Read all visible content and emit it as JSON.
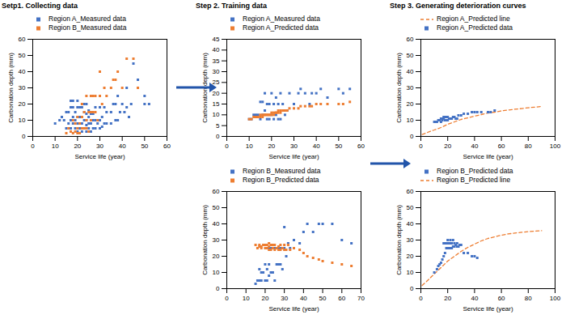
{
  "chart_data": [
    {
      "type": "scatter",
      "title": "Setp1. Collecting data",
      "xlabel": "Service life (year)",
      "ylabel": "Carbonation depth (mm)",
      "xlim": [
        0,
        60
      ],
      "xticks": [
        0,
        10,
        20,
        30,
        40,
        50,
        60
      ],
      "ylim": [
        0,
        60
      ],
      "yticks": [
        0,
        10,
        20,
        30,
        40,
        50,
        60
      ],
      "legend": "upper left",
      "series": [
        {
          "name": "Region A_Measured data",
          "color": "#4472C4",
          "marker": "square",
          "type": "scatter",
          "x": [
            10,
            12,
            13,
            14,
            15,
            15,
            16,
            16,
            17,
            17,
            17,
            17,
            18,
            18,
            18,
            18,
            19,
            19,
            19,
            20,
            20,
            20,
            20,
            20,
            21,
            21,
            21,
            21,
            22,
            22,
            22,
            22,
            23,
            23,
            23,
            23,
            24,
            24,
            24,
            24,
            24,
            25,
            25,
            25,
            25,
            26,
            26,
            26,
            27,
            27,
            27,
            28,
            28,
            28,
            29,
            30,
            30,
            30,
            31,
            31,
            32,
            32,
            33,
            33,
            35,
            35,
            36,
            37,
            37,
            38,
            38,
            39,
            40,
            41,
            42,
            42,
            43,
            44,
            45,
            47,
            50,
            50,
            52
          ],
          "values": [
            8,
            10,
            12,
            10,
            5,
            15,
            8,
            15,
            5,
            10,
            18,
            22,
            8,
            12,
            18,
            22,
            5,
            10,
            15,
            3,
            8,
            12,
            18,
            22,
            5,
            8,
            12,
            18,
            3,
            8,
            12,
            18,
            5,
            10,
            15,
            20,
            3,
            7,
            10,
            14,
            20,
            5,
            8,
            12,
            16,
            3,
            8,
            14,
            5,
            10,
            14,
            5,
            10,
            18,
            8,
            5,
            10,
            18,
            6,
            12,
            8,
            18,
            8,
            15,
            8,
            15,
            20,
            10,
            20,
            10,
            25,
            15,
            20,
            15,
            18,
            30,
            12,
            20,
            45,
            35,
            25,
            20,
            20
          ]
        },
        {
          "name": "Region B_Measured data",
          "color": "#ED7D31",
          "marker": "square",
          "type": "scatter",
          "x": [
            15,
            16,
            17,
            18,
            18,
            19,
            19,
            20,
            20,
            20,
            21,
            21,
            22,
            22,
            22,
            23,
            23,
            24,
            24,
            24,
            25,
            25,
            26,
            26,
            26,
            27,
            27,
            28,
            28,
            29,
            30,
            30,
            31,
            32,
            33,
            35,
            36,
            37,
            38,
            40,
            42,
            45,
            47
          ],
          "values": [
            2,
            5,
            3,
            2,
            10,
            3,
            8,
            2,
            5,
            12,
            2,
            8,
            5,
            12,
            20,
            5,
            15,
            5,
            10,
            25,
            3,
            15,
            10,
            25,
            15,
            15,
            25,
            15,
            25,
            10,
            25,
            40,
            20,
            30,
            25,
            30,
            35,
            35,
            40,
            30,
            48,
            48,
            30
          ]
        }
      ]
    },
    {
      "type": "scatter",
      "title": "Step 2. Training data",
      "xlabel": "Service life (year)",
      "ylabel": "Carbonation depth (mm)",
      "xlim": [
        0,
        60
      ],
      "xticks": [
        0,
        10,
        20,
        30,
        40,
        50,
        60
      ],
      "ylim": [
        0,
        45
      ],
      "yticks": [
        0,
        5,
        10,
        15,
        20,
        25,
        30,
        35,
        40,
        45
      ],
      "legend": "upper left",
      "series": [
        {
          "name": "Region A_Measured data",
          "color": "#4472C4",
          "marker": "square",
          "type": "scatter",
          "x": [
            10,
            11,
            12,
            13,
            14,
            15,
            15,
            16,
            16,
            17,
            17,
            18,
            18,
            19,
            19,
            20,
            20,
            21,
            21,
            22,
            22,
            23,
            23,
            24,
            24,
            25,
            26,
            27,
            28,
            30,
            32,
            33,
            35,
            37,
            38,
            40,
            42,
            45,
            50,
            52,
            55
          ],
          "values": [
            8,
            8,
            10,
            10,
            10,
            8,
            16,
            10,
            16,
            12,
            20,
            8,
            15,
            8,
            15,
            10,
            20,
            8,
            15,
            10,
            18,
            8,
            15,
            8,
            20,
            15,
            10,
            12,
            20,
            15,
            20,
            22,
            20,
            15,
            20,
            20,
            22,
            18,
            22,
            20,
            22
          ]
        },
        {
          "name": "Region A_Predicted data",
          "color": "#ED7D31",
          "marker": "square",
          "type": "scatter",
          "x": [
            10,
            11,
            12,
            13,
            14,
            15,
            15,
            16,
            16,
            17,
            17,
            18,
            18,
            19,
            19,
            20,
            20,
            21,
            21,
            22,
            22,
            23,
            23,
            24,
            24,
            25,
            26,
            27,
            28,
            30,
            32,
            33,
            35,
            37,
            38,
            40,
            42,
            45,
            50,
            52,
            55
          ],
          "values": [
            8,
            8,
            9,
            9,
            9,
            9,
            10,
            9,
            10,
            10,
            10,
            10,
            10,
            10,
            10,
            10,
            11,
            10,
            11,
            11,
            11,
            11,
            12,
            11,
            12,
            12,
            12,
            12,
            13,
            13,
            13,
            14,
            14,
            14,
            14,
            15,
            15,
            15,
            15,
            15,
            16
          ]
        }
      ]
    },
    {
      "type": "scatter",
      "xlabel": "Service life (year)",
      "ylabel": "Carbonation depth (mm)",
      "xlim": [
        0,
        70
      ],
      "xticks": [
        0,
        10,
        20,
        30,
        40,
        50,
        60,
        70
      ],
      "ylim": [
        0,
        60
      ],
      "yticks": [
        0,
        10,
        20,
        30,
        40,
        50,
        60
      ],
      "legend": "upper left",
      "series": [
        {
          "name": "Region B_Measured data",
          "color": "#4472C4",
          "marker": "square",
          "type": "scatter",
          "x": [
            15,
            16,
            17,
            17,
            18,
            18,
            19,
            20,
            20,
            21,
            21,
            22,
            22,
            22,
            23,
            23,
            24,
            24,
            25,
            25,
            26,
            27,
            27,
            28,
            28,
            29,
            30,
            30,
            31,
            32,
            33,
            35,
            38,
            40,
            42,
            45,
            48,
            50,
            55,
            60,
            65
          ],
          "values": [
            3,
            5,
            5,
            12,
            5,
            10,
            10,
            5,
            15,
            5,
            12,
            8,
            15,
            25,
            10,
            25,
            10,
            25,
            5,
            25,
            15,
            15,
            25,
            15,
            25,
            12,
            25,
            38,
            20,
            28,
            25,
            30,
            28,
            35,
            40,
            35,
            40,
            40,
            40,
            30,
            28
          ]
        },
        {
          "name": "Region B_Predicted data",
          "color": "#ED7D31",
          "marker": "square",
          "type": "scatter",
          "x": [
            15,
            16,
            17,
            17,
            18,
            18,
            19,
            20,
            20,
            21,
            21,
            22,
            22,
            22,
            23,
            23,
            24,
            24,
            25,
            25,
            26,
            27,
            27,
            28,
            28,
            29,
            30,
            30,
            31,
            32,
            33,
            35,
            38,
            40,
            42,
            45,
            48,
            50,
            55,
            60,
            65
          ],
          "values": [
            27,
            25,
            26,
            27,
            25,
            26,
            27,
            25,
            27,
            25,
            27,
            24,
            26,
            28,
            24,
            27,
            25,
            27,
            24,
            27,
            25,
            24,
            26,
            24,
            27,
            25,
            24,
            27,
            24,
            27,
            24,
            25,
            24,
            22,
            20,
            19,
            18,
            17,
            16,
            15,
            14
          ]
        }
      ]
    },
    {
      "type": "scatter",
      "title": "Step 3. Generating deterioration curves",
      "xlabel": "Service life (year)",
      "ylabel": "Carbonation depth (mm)",
      "xlim": [
        0,
        100
      ],
      "xticks": [
        0,
        20,
        40,
        60,
        80,
        100
      ],
      "ylim": [
        0,
        60
      ],
      "yticks": [
        0,
        10,
        20,
        30,
        40,
        50,
        60
      ],
      "legend": "upper left",
      "series": [
        {
          "name": "Region A_Predicted line",
          "color": "#ED7D31",
          "type": "line",
          "line_style": "dashed",
          "x": [
            1,
            3,
            5,
            8,
            10,
            15,
            20,
            25,
            30,
            35,
            40,
            45,
            50,
            55,
            60,
            65,
            70,
            75,
            80,
            85,
            90
          ],
          "values": [
            1.2,
            1.8,
            2.5,
            3.5,
            4.0,
            5.5,
            7.5,
            9.0,
            10.5,
            11.5,
            12.5,
            13.5,
            14.5,
            15.0,
            15.8,
            16.3,
            16.8,
            17.2,
            17.7,
            18.1,
            18.5
          ]
        },
        {
          "name": "Region A_Predicted data",
          "color": "#4472C4",
          "marker": "square",
          "type": "scatter",
          "x": [
            10,
            11,
            12,
            13,
            14,
            15,
            15,
            16,
            16,
            17,
            17,
            18,
            18,
            19,
            19,
            20,
            20,
            21,
            22,
            23,
            24,
            25,
            26,
            27,
            28,
            30,
            32,
            35,
            38,
            40,
            42,
            45,
            50,
            52,
            55
          ],
          "values": [
            9,
            9,
            9,
            10,
            10,
            9,
            11,
            10,
            11,
            11,
            12,
            10,
            12,
            10,
            12,
            10,
            12,
            11,
            11,
            11,
            12,
            12,
            11,
            11,
            13,
            13,
            14,
            14,
            15,
            15,
            15,
            15,
            15,
            15,
            16
          ]
        }
      ]
    },
    {
      "type": "scatter",
      "xlabel": "Service life (year)",
      "ylabel": "Carbonation depth (mm)",
      "xlim": [
        0,
        100
      ],
      "xticks": [
        0,
        20,
        40,
        60,
        80,
        100
      ],
      "ylim": [
        0,
        60
      ],
      "yticks": [
        0,
        10,
        20,
        30,
        40,
        50,
        60
      ],
      "legend": "upper left",
      "series": [
        {
          "name": "Region B_Predicted data",
          "color": "#4472C4",
          "marker": "square",
          "type": "scatter",
          "x": [
            10,
            12,
            13,
            14,
            15,
            16,
            17,
            17,
            18,
            18,
            19,
            19,
            20,
            20,
            20,
            21,
            21,
            22,
            22,
            22,
            23,
            23,
            24,
            24,
            25,
            25,
            26,
            27,
            27,
            28,
            29,
            30,
            32,
            35,
            38,
            40,
            42
          ],
          "values": [
            10,
            12,
            14,
            15,
            16,
            18,
            20,
            28,
            22,
            28,
            25,
            28,
            25,
            28,
            30,
            25,
            28,
            25,
            28,
            30,
            25,
            28,
            26,
            30,
            26,
            28,
            27,
            26,
            28,
            26,
            27,
            27,
            22,
            22,
            20,
            20,
            19
          ]
        },
        {
          "name": "Region B_Predicted line",
          "color": "#ED7D31",
          "type": "line",
          "line_style": "dashed",
          "x": [
            1,
            3,
            5,
            8,
            10,
            15,
            20,
            25,
            30,
            35,
            40,
            45,
            50,
            55,
            60,
            65,
            70,
            75,
            80,
            85,
            90
          ],
          "values": [
            2.0,
            3.5,
            5.0,
            7.5,
            9.0,
            13.0,
            17.0,
            20.0,
            23.0,
            25.5,
            27.5,
            29.5,
            31.0,
            32.0,
            33.0,
            33.8,
            34.3,
            34.8,
            35.2,
            35.5,
            35.8
          ]
        }
      ]
    }
  ]
}
